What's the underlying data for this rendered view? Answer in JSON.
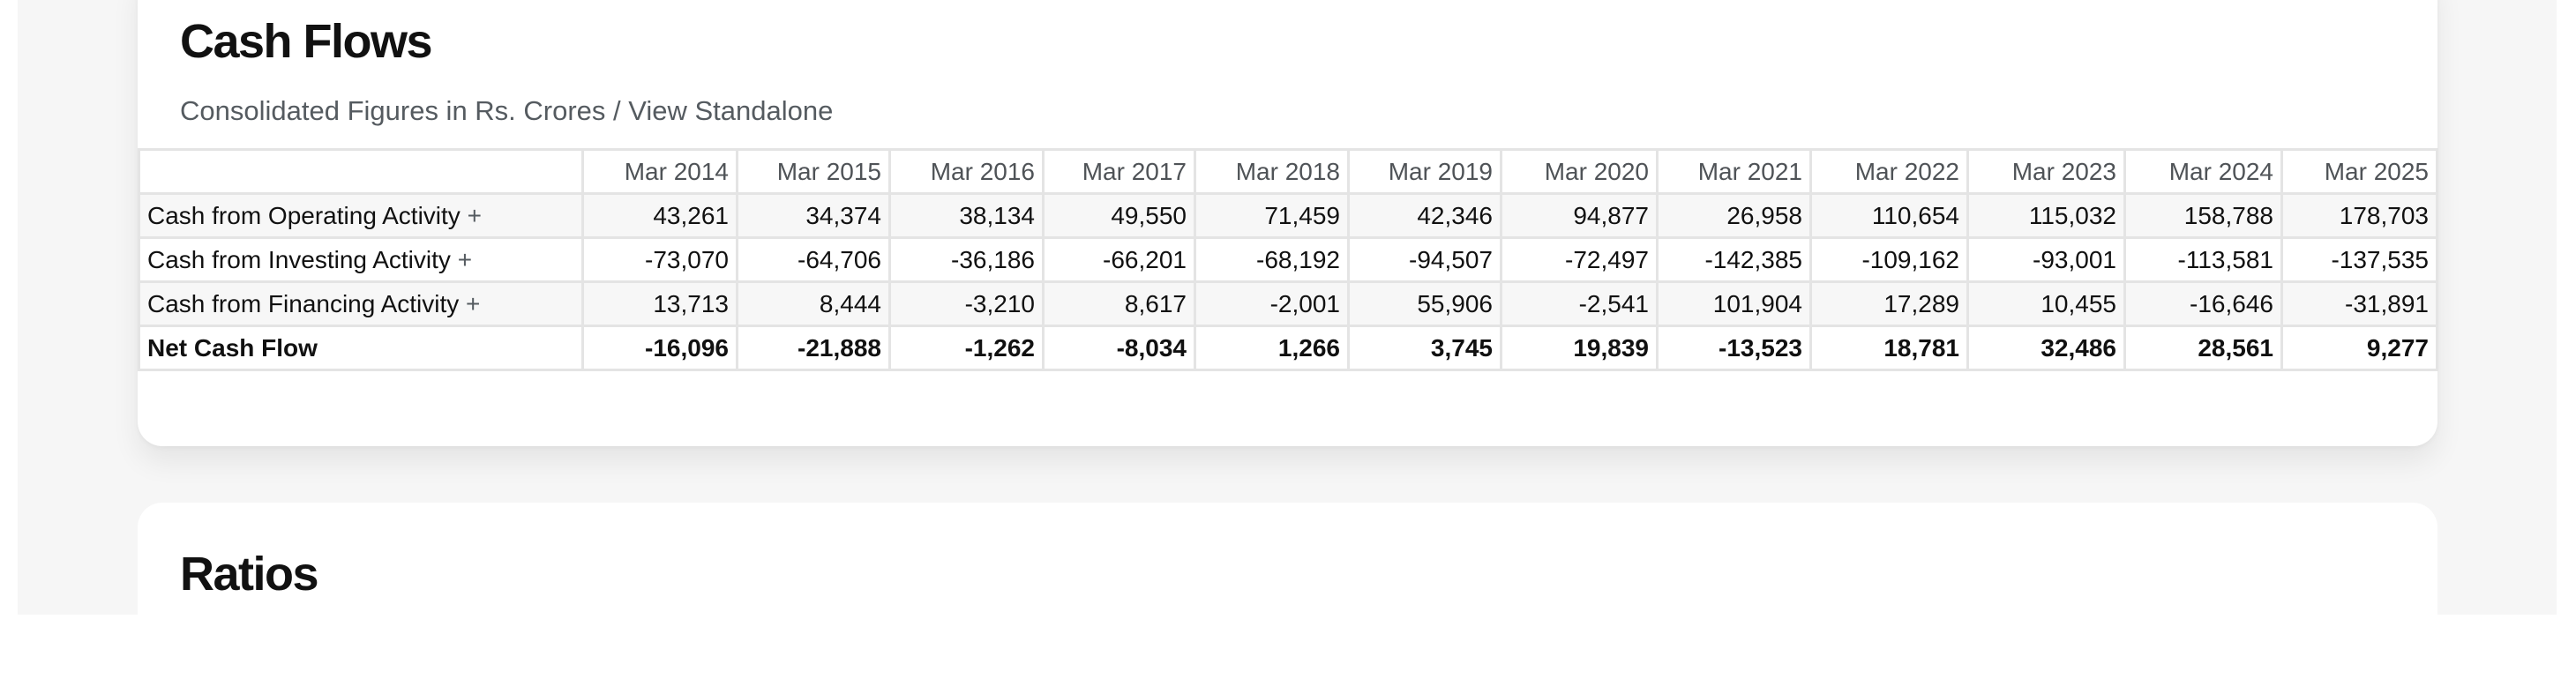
{
  "cash_flows": {
    "title": "Cash Flows",
    "subtitle_prefix": "Consolidated Figures in Rs. Crores / ",
    "subtitle_link": "View Standalone",
    "columns": [
      "Mar 2014",
      "Mar 2015",
      "Mar 2016",
      "Mar 2017",
      "Mar 2018",
      "Mar 2019",
      "Mar 2020",
      "Mar 2021",
      "Mar 2022",
      "Mar 2023",
      "Mar 2024",
      "Mar 2025"
    ],
    "rows": [
      {
        "label": "Cash from Operating Activity",
        "expand": "+",
        "values": [
          "43,261",
          "34,374",
          "38,134",
          "49,550",
          "71,459",
          "42,346",
          "94,877",
          "26,958",
          "110,654",
          "115,032",
          "158,788",
          "178,703"
        ]
      },
      {
        "label": "Cash from Investing Activity",
        "expand": "+",
        "values": [
          "-73,070",
          "-64,706",
          "-36,186",
          "-66,201",
          "-68,192",
          "-94,507",
          "-72,497",
          "-142,385",
          "-109,162",
          "-93,001",
          "-113,581",
          "-137,535"
        ]
      },
      {
        "label": "Cash from Financing Activity",
        "expand": "+",
        "values": [
          "13,713",
          "8,444",
          "-3,210",
          "8,617",
          "-2,001",
          "55,906",
          "-2,541",
          "101,904",
          "17,289",
          "10,455",
          "-16,646",
          "-31,891"
        ]
      },
      {
        "label": "Net Cash Flow",
        "values": [
          "-16,096",
          "-21,888",
          "-1,262",
          "-8,034",
          "1,266",
          "3,745",
          "19,839",
          "-13,523",
          "18,781",
          "32,486",
          "28,561",
          "9,277"
        ]
      }
    ]
  },
  "ratios": {
    "title": "Ratios"
  }
}
